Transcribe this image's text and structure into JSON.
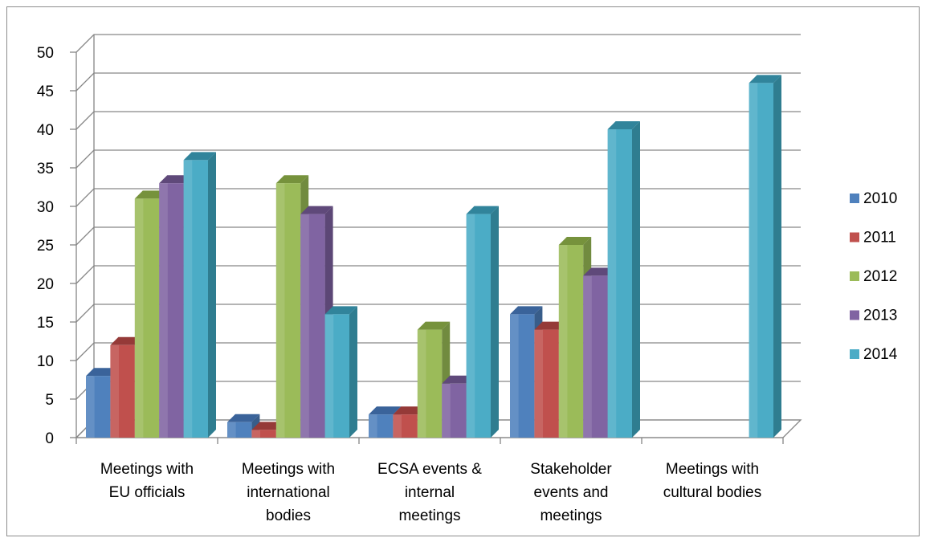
{
  "chart_data": {
    "type": "bar",
    "style": "3d-clustered-column",
    "categories": [
      [
        "Meetings with",
        "EU officials"
      ],
      [
        "Meetings with",
        "international",
        "bodies"
      ],
      [
        "ECSA events &",
        "internal",
        "meetings"
      ],
      [
        "Stakeholder",
        "events and",
        "meetings"
      ],
      [
        "Meetings with",
        "cultural bodies"
      ]
    ],
    "series": [
      {
        "name": "2010",
        "color": "#4f81bd",
        "side": "#385d8a",
        "top": "#3a639a",
        "values": [
          8,
          2,
          3,
          16,
          0
        ]
      },
      {
        "name": "2011",
        "color": "#c0504d",
        "side": "#8c3836",
        "top": "#953a38",
        "values": [
          12,
          1,
          3,
          14,
          0
        ]
      },
      {
        "name": "2012",
        "color": "#9bbb59",
        "side": "#718b3f",
        "top": "#76923c",
        "values": [
          31,
          33,
          14,
          25,
          0
        ]
      },
      {
        "name": "2013",
        "color": "#8064a2",
        "side": "#5c4776",
        "top": "#5f497a",
        "values": [
          33,
          29,
          7,
          21,
          0
        ]
      },
      {
        "name": "2014",
        "color": "#4bacc6",
        "side": "#2f7d90",
        "top": "#31849b",
        "values": [
          36,
          16,
          29,
          40,
          46
        ]
      }
    ],
    "ylim": [
      0,
      50
    ],
    "yticks": [
      "0",
      "5",
      "10",
      "15",
      "20",
      "25",
      "30",
      "35",
      "40",
      "45",
      "50"
    ],
    "grid": true,
    "legend_position": "right"
  }
}
